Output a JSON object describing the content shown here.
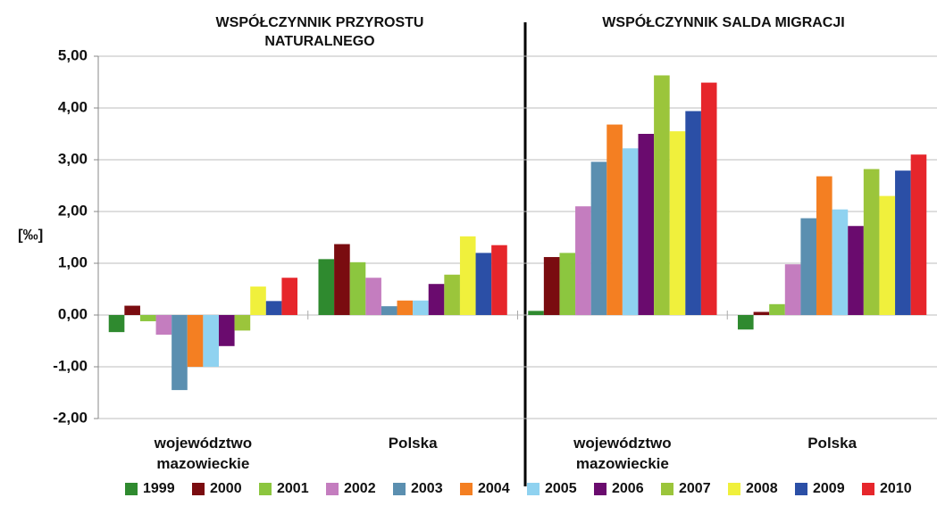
{
  "chart_data": {
    "type": "bar",
    "titles": [
      "WSPÓŁCZYNNIK PRZYROSTU NATURALNEGO",
      "WSPÓŁCZYNNIK SALDA MIGRACJI"
    ],
    "y_label": "[‰]",
    "categories": [
      "województwo mazowieckie",
      "Polska",
      "województwo mazowieckie",
      "Polska"
    ],
    "series": [
      {
        "name": "1999",
        "color": "#2f8a2f",
        "values": [
          -0.33,
          1.08,
          0.08,
          -0.28
        ]
      },
      {
        "name": "2000",
        "color": "#7a0c10",
        "values": [
          0.18,
          1.37,
          1.12,
          0.06
        ]
      },
      {
        "name": "2001",
        "color": "#8cc63f",
        "values": [
          -0.12,
          1.02,
          1.2,
          0.21
        ]
      },
      {
        "name": "2002",
        "color": "#c47dbf",
        "values": [
          -0.38,
          0.72,
          2.1,
          0.98
        ]
      },
      {
        "name": "2003",
        "color": "#5b8fb0",
        "values": [
          -1.45,
          0.17,
          2.96,
          1.87
        ]
      },
      {
        "name": "2004",
        "color": "#f47f22",
        "values": [
          -1.0,
          0.28,
          3.68,
          2.68
        ]
      },
      {
        "name": "2005",
        "color": "#8fd2f0",
        "values": [
          -1.0,
          0.28,
          3.22,
          2.04
        ]
      },
      {
        "name": "2006",
        "color": "#6a0b6e",
        "values": [
          -0.6,
          0.6,
          3.5,
          1.72
        ]
      },
      {
        "name": "2007",
        "color": "#9bc53b",
        "values": [
          -0.3,
          0.78,
          4.63,
          2.82
        ]
      },
      {
        "name": "2008",
        "color": "#f0f03c",
        "values": [
          0.55,
          1.52,
          3.55,
          2.3
        ]
      },
      {
        "name": "2009",
        "color": "#2b4fa6",
        "values": [
          0.27,
          1.2,
          3.94,
          2.79
        ]
      },
      {
        "name": "2010",
        "color": "#e6262b",
        "values": [
          0.72,
          1.35,
          4.49,
          3.1
        ]
      }
    ],
    "ylim": [
      -2,
      5
    ],
    "yticks": [
      {
        "value": -2,
        "label": "-2,00"
      },
      {
        "value": -1,
        "label": "-1,00"
      },
      {
        "value": 0,
        "label": "0,00"
      },
      {
        "value": 1,
        "label": "1,00"
      },
      {
        "value": 2,
        "label": "2,00"
      },
      {
        "value": 3,
        "label": "3,00"
      },
      {
        "value": 4,
        "label": "4,00"
      },
      {
        "value": 5,
        "label": "5,00"
      }
    ],
    "grid": true
  }
}
